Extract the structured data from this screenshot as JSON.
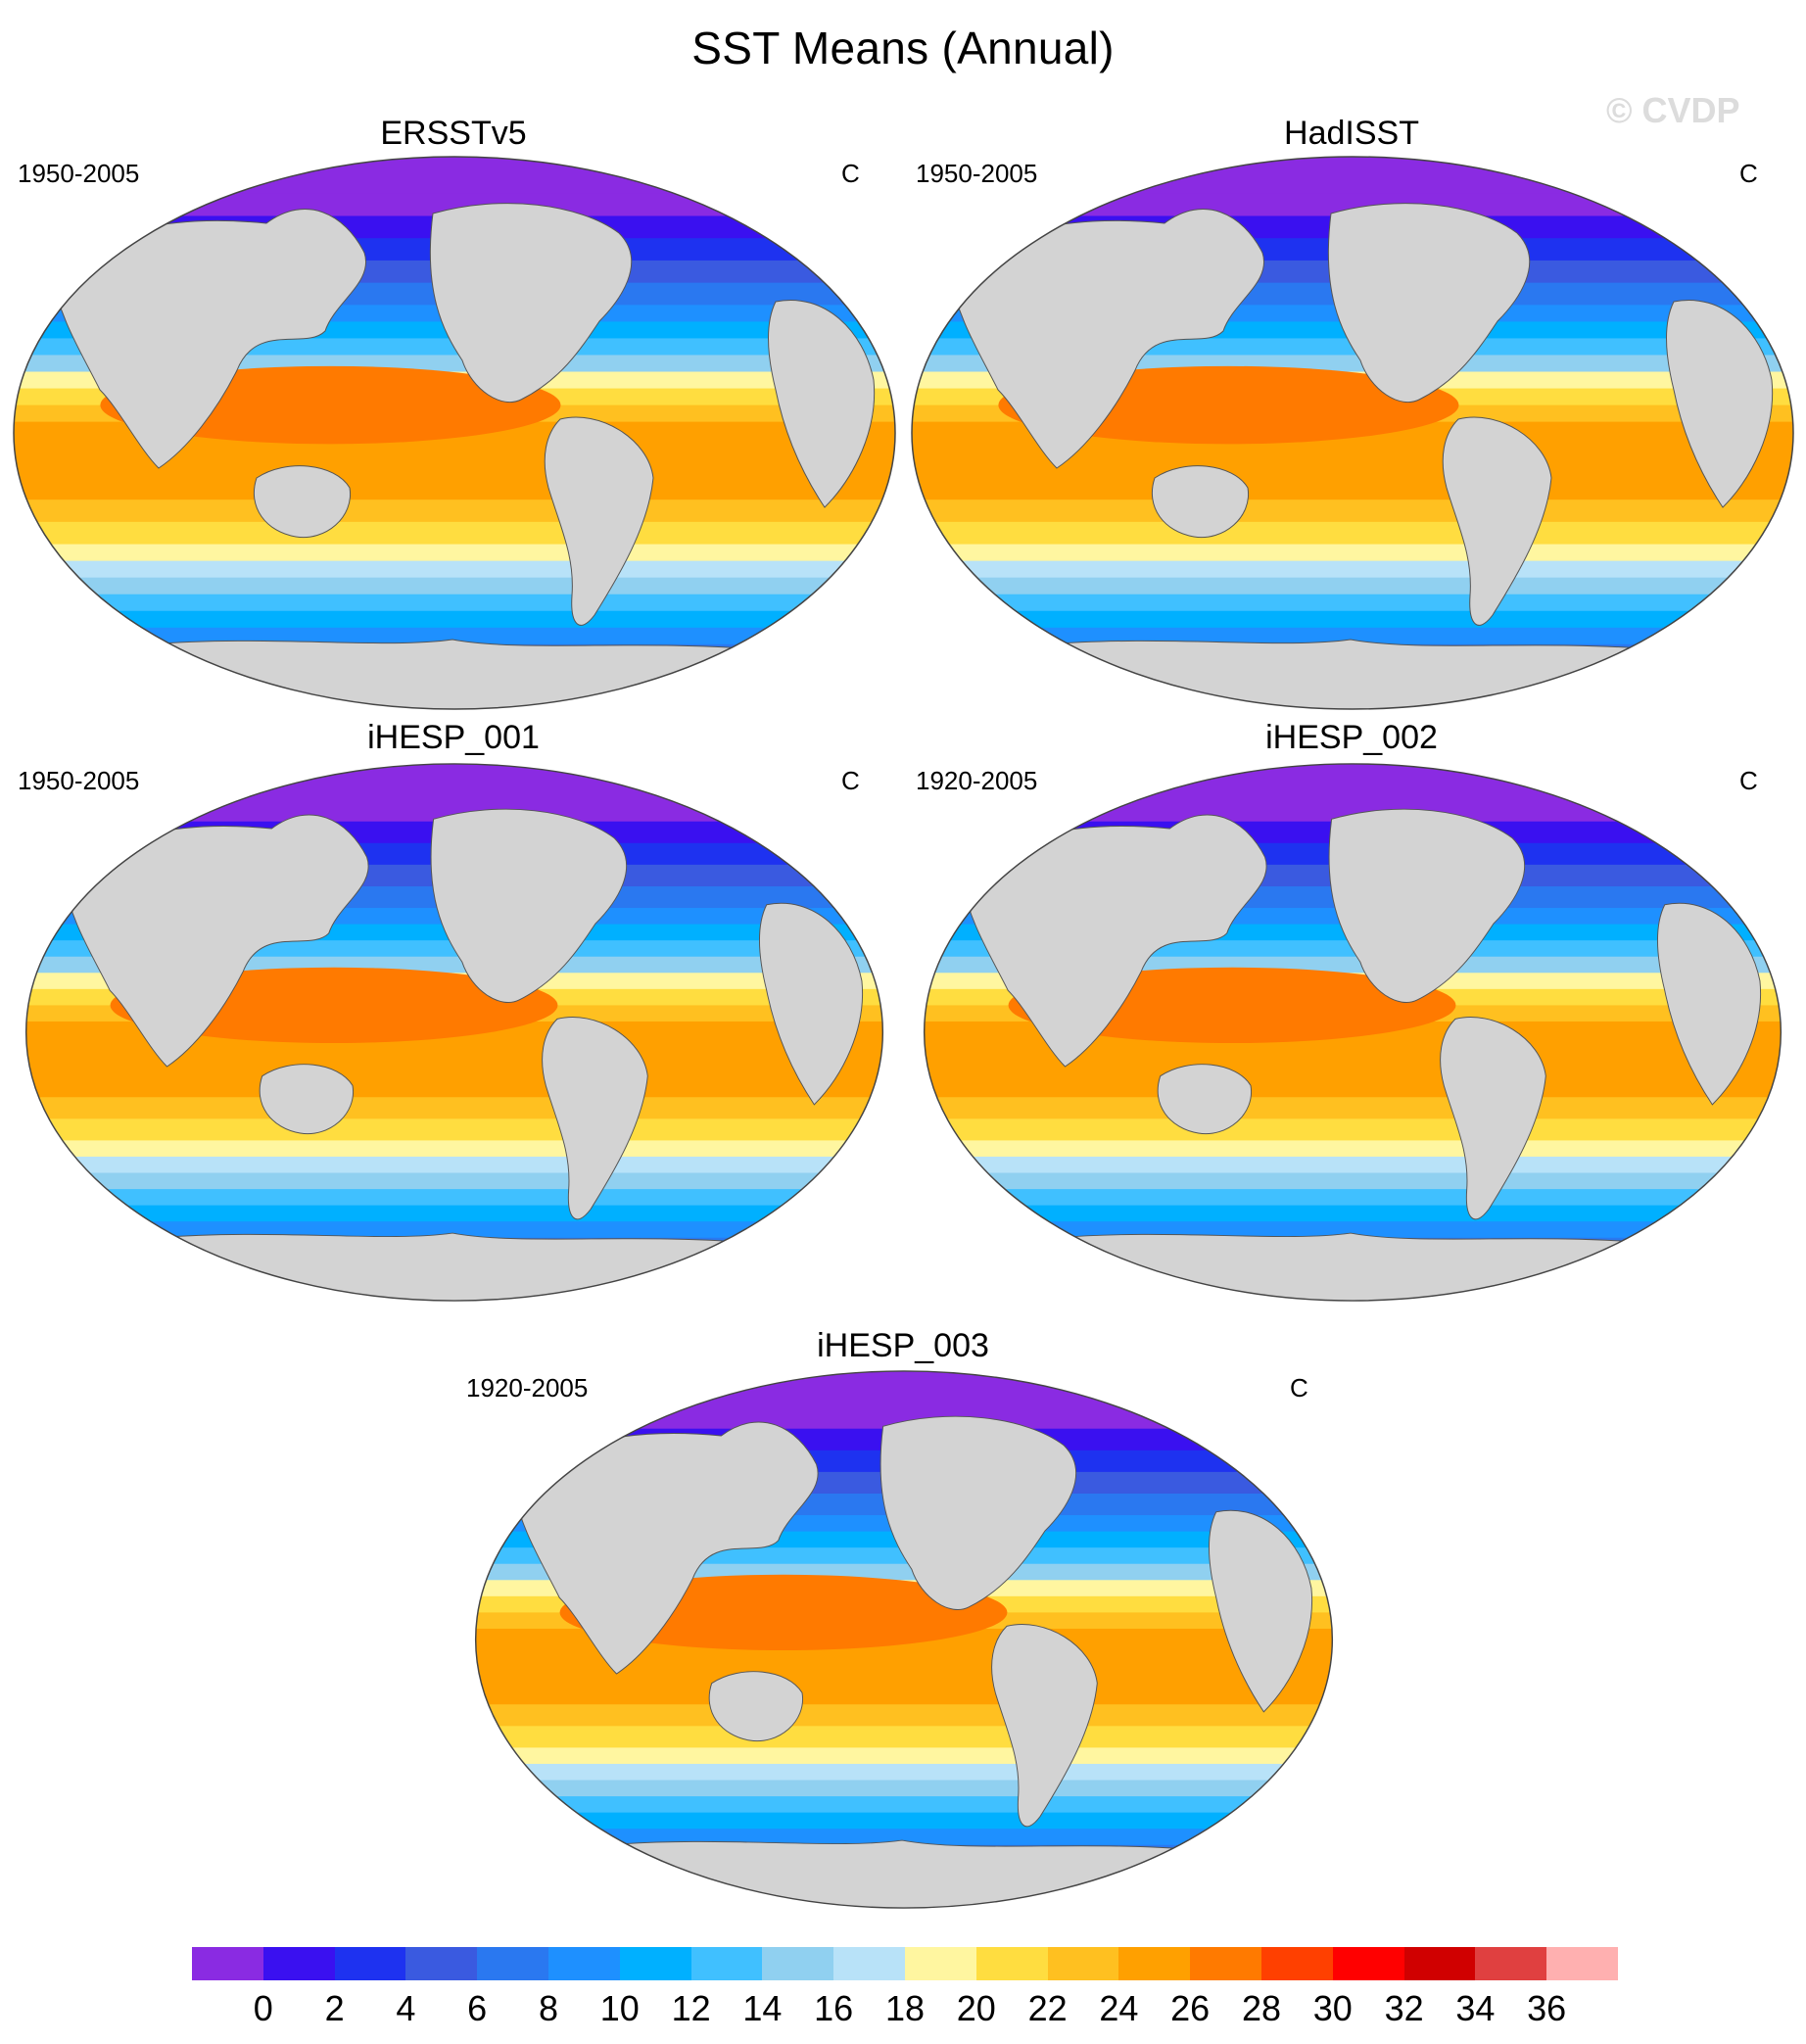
{
  "title": "SST Means (Annual)",
  "watermark": "© CVDP",
  "panels": [
    {
      "name": "ERSSTv5",
      "period": "1950-2005",
      "unit": "C"
    },
    {
      "name": "HadISST",
      "period": "1950-2005",
      "unit": "C"
    },
    {
      "name": "iHESP_001",
      "period": "1950-2005",
      "unit": "C"
    },
    {
      "name": "iHESP_002",
      "period": "1920-2005",
      "unit": "C"
    },
    {
      "name": "iHESP_003",
      "period": "1920-2005",
      "unit": "C"
    }
  ],
  "colorbar": {
    "colors": [
      "#8a2be2",
      "#3a10f0",
      "#1e32f0",
      "#3a5ae0",
      "#2a78f0",
      "#1e90ff",
      "#00b0ff",
      "#40c0ff",
      "#90d0f0",
      "#b8e2f8",
      "#fff6a0",
      "#ffdd40",
      "#ffc020",
      "#ffa000",
      "#ff7a00",
      "#ff4000",
      "#ff0000",
      "#d00000",
      "#e04040",
      "#ffb0b0"
    ],
    "labels": [
      "0",
      "2",
      "4",
      "6",
      "8",
      "10",
      "12",
      "14",
      "16",
      "18",
      "20",
      "22",
      "24",
      "26",
      "28",
      "30",
      "32",
      "34",
      "36"
    ]
  },
  "land_color": "#d3d3d3"
}
